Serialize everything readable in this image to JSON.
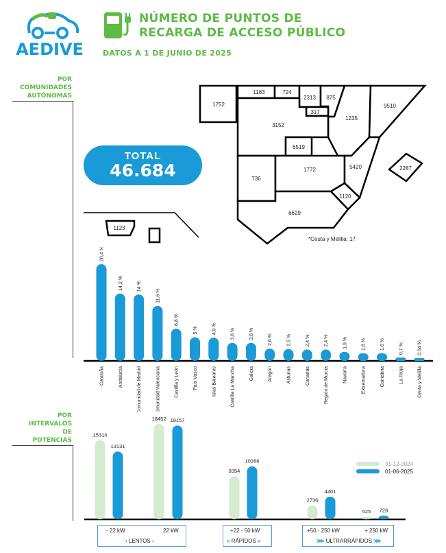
{
  "logo": {
    "text": "AEDIVE"
  },
  "header": {
    "title_line1": "NÚMERO DE PUNTOS DE",
    "title_line2": "RECARGA DE ACCESO PÚBLICO",
    "subtitle": "DATOS A 1 DE JUNIO DE 2025"
  },
  "section1": {
    "label_line1": "POR",
    "label_line2": "COMUNIDADES",
    "label_line3": "AUTÓNOMAS"
  },
  "total": {
    "label": "TOTAL",
    "value": "46.684"
  },
  "map": {
    "galicia": "1752",
    "asturias": "1183",
    "cantabria": "724",
    "pais_vasco": "2313",
    "navarra": "875",
    "la_rioja": "317",
    "aragon": "1235",
    "cataluna": "9510",
    "castilla_leon": "3152",
    "madrid": "6519",
    "extremadura": "736",
    "castilla_la_mancha": "1772",
    "valencia": "5420",
    "murcia": "1120",
    "andalucia": "6629",
    "baleares": "2287",
    "canarias": "1123",
    "note": "*Ceuta y Melilla: 17"
  },
  "section2": {
    "label_line1": "POR",
    "label_line2": "INTERVALOS",
    "label_line3": "DE",
    "label_line4": "POTENCIAS"
  },
  "colors": {
    "blue": "#1a9ad6",
    "green_light": "#d4ebd0",
    "brand_green": "#5dbb46"
  },
  "chart_data": [
    {
      "type": "bar",
      "title": "Por comunidades autónomas",
      "ylabel": "%",
      "categories": [
        "Cataluña",
        "Andalucía",
        "Comunidad de Madrid",
        "Comunidad Valenciana",
        "Castilla y León",
        "País Vasco",
        "Islas Baleares",
        "Castilla La Mancha",
        "Galicia",
        "Aragón",
        "Asturias",
        "Canarias",
        "Región de Murcia",
        "Navarra",
        "Extremadura",
        "Cantabria",
        "La Rioja",
        "Ceuta y Melilla"
      ],
      "values": [
        20.4,
        14.2,
        14,
        11.6,
        6.8,
        5,
        4.9,
        3.8,
        3.8,
        2.6,
        2.5,
        2.4,
        2.4,
        1.9,
        1.6,
        1.6,
        0.7,
        0.04
      ],
      "labels": [
        "20,4 %",
        "14,2 %",
        "14 %",
        "11,6 %",
        "6,8 %",
        "5 %",
        "4,9 %",
        "3,8 %",
        "3,8 %",
        "2,6 %",
        "2,5 %",
        "2,4 %",
        "2,4 %",
        "1,9 %",
        "1,6 %",
        "1,6 %",
        "0,7 %",
        "0,04 %"
      ],
      "ylim": [
        0,
        21
      ]
    },
    {
      "type": "bar",
      "title": "Por intervalos de potencias",
      "categories": [
        "- 22 kW",
        "22 kW",
        "+22 - 50 kW",
        "+50 - 250 kW",
        "+ 250 kW"
      ],
      "groups": [
        {
          "label": "LENTOS",
          "categories": [
            0,
            1
          ]
        },
        {
          "label": "RÁPIDOS",
          "categories": [
            2
          ]
        },
        {
          "label": "ULTRARRÁPIDOS",
          "categories": [
            3,
            4
          ]
        }
      ],
      "series": [
        {
          "name": "31-12-2024",
          "values": [
            15314,
            18452,
            8354,
            2736,
            525
          ]
        },
        {
          "name": "01-06-2025",
          "values": [
            13131,
            18157,
            10266,
            4401,
            729
          ]
        }
      ],
      "legend": "right",
      "ylim": [
        0,
        18500
      ]
    }
  ]
}
